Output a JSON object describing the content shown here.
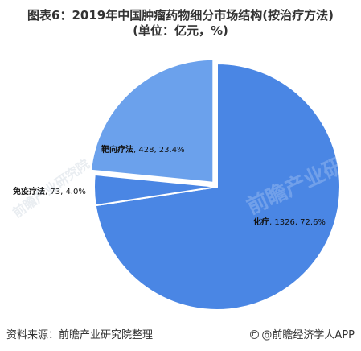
{
  "title": {
    "line1": "图表6：2019年中国肿瘤药物细分市场结构(按治疗方法)",
    "line2": "(单位：亿元，%)"
  },
  "chart_data": {
    "type": "pie",
    "title": "图表6：2019年中国肿瘤药物细分市场结构(按治疗方法)(单位：亿元，%)",
    "slices": [
      {
        "label": "化疗",
        "value": 1326,
        "percent": "72.6%",
        "color": "#4a86e4"
      },
      {
        "label": "免疫疗法",
        "value": 73,
        "percent": "4.0%",
        "color": "#4a86e4"
      },
      {
        "label": "靶向疗法",
        "value": 428,
        "percent": "23.4%",
        "color": "#6ba1ec"
      }
    ],
    "start_angle_deg": 0,
    "direction": "clockwise",
    "legend": "none",
    "exploded_slice": "靶向疗法"
  },
  "watermark": {
    "main": "前瞻产业研究院",
    "left": "前瞻产业研究院"
  },
  "footer": {
    "source": "资料来源：前瞻产业研究院整理",
    "brand": "@前瞻经济学人APP"
  }
}
